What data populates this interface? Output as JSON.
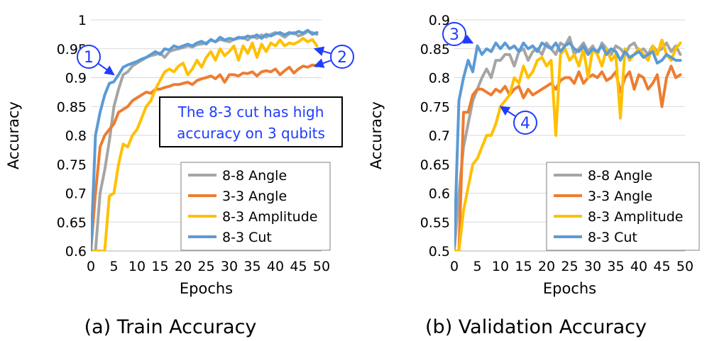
{
  "chart_data": [
    {
      "type": "line",
      "caption": "(a) Train Accuracy",
      "xlabel": "Epochs",
      "ylabel": "Accuracy",
      "xlim": [
        0,
        50
      ],
      "ylim": [
        0.6,
        1
      ],
      "xticks": [
        0,
        5,
        10,
        15,
        20,
        25,
        30,
        35,
        40,
        45,
        50
      ],
      "yticks": [
        0.6,
        0.65,
        0.7,
        0.75,
        0.8,
        0.85,
        0.9,
        0.95,
        1
      ],
      "ytick_labels": [
        "0.6",
        "0.65",
        "0.7",
        "0.75",
        "0.8",
        "0.85",
        "0.9",
        "0.95",
        "1"
      ],
      "grid": "horizontal",
      "legend_position": "bottom-right",
      "series": [
        {
          "name": "8-8 Angle",
          "color": "#a5a5a5",
          "x": [
            0,
            1,
            2,
            3,
            4,
            5,
            6,
            7,
            8,
            9,
            10,
            11,
            12,
            13,
            14,
            15,
            16,
            17,
            18,
            19,
            20,
            21,
            22,
            23,
            24,
            25,
            26,
            27,
            28,
            29,
            30,
            31,
            32,
            33,
            34,
            35,
            36,
            37,
            38,
            39,
            40,
            41,
            42,
            43,
            44,
            45,
            46,
            47,
            48,
            49
          ],
          "y": [
            0.6,
            0.6,
            0.7,
            0.74,
            0.79,
            0.85,
            0.88,
            0.905,
            0.91,
            0.92,
            0.925,
            0.93,
            0.935,
            0.938,
            0.94,
            0.943,
            0.935,
            0.945,
            0.948,
            0.95,
            0.952,
            0.955,
            0.953,
            0.957,
            0.958,
            0.96,
            0.965,
            0.962,
            0.966,
            0.964,
            0.962,
            0.966,
            0.968,
            0.97,
            0.965,
            0.972,
            0.968,
            0.974,
            0.97,
            0.975,
            0.978,
            0.975,
            0.97,
            0.976,
            0.978,
            0.972,
            0.975,
            0.98,
            0.978,
            0.975
          ]
        },
        {
          "name": "3-3 Angle",
          "color": "#ed7d31",
          "x": [
            0,
            1,
            2,
            3,
            4,
            5,
            6,
            7,
            8,
            9,
            10,
            11,
            12,
            13,
            14,
            15,
            16,
            17,
            18,
            19,
            20,
            21,
            22,
            23,
            24,
            25,
            26,
            27,
            28,
            29,
            30,
            31,
            32,
            33,
            34,
            35,
            36,
            37,
            38,
            39,
            40,
            41,
            42,
            43,
            44,
            45,
            46,
            47,
            48,
            49
          ],
          "y": [
            0.6,
            0.7,
            0.78,
            0.8,
            0.81,
            0.82,
            0.84,
            0.845,
            0.85,
            0.86,
            0.865,
            0.87,
            0.875,
            0.873,
            0.88,
            0.88,
            0.883,
            0.885,
            0.888,
            0.888,
            0.89,
            0.892,
            0.888,
            0.895,
            0.898,
            0.9,
            0.903,
            0.898,
            0.905,
            0.892,
            0.905,
            0.905,
            0.903,
            0.908,
            0.907,
            0.91,
            0.903,
            0.91,
            0.912,
            0.91,
            0.915,
            0.905,
            0.912,
            0.918,
            0.908,
            0.915,
            0.92,
            0.918,
            0.922,
            0.92
          ]
        },
        {
          "name": "8-3 Amplitude",
          "color": "#ffc000",
          "x": [
            0,
            1,
            2,
            3,
            4,
            5,
            6,
            7,
            8,
            9,
            10,
            11,
            12,
            13,
            14,
            15,
            16,
            17,
            18,
            19,
            20,
            21,
            22,
            23,
            24,
            25,
            26,
            27,
            28,
            29,
            30,
            31,
            32,
            33,
            34,
            35,
            36,
            37,
            38,
            39,
            40,
            41,
            42,
            43,
            44,
            45,
            46,
            47,
            48,
            49
          ],
          "y": [
            0.6,
            0.6,
            0.6,
            0.6,
            0.695,
            0.7,
            0.75,
            0.785,
            0.78,
            0.8,
            0.81,
            0.83,
            0.85,
            0.86,
            0.88,
            0.895,
            0.91,
            0.915,
            0.91,
            0.92,
            0.925,
            0.905,
            0.915,
            0.93,
            0.918,
            0.935,
            0.945,
            0.93,
            0.95,
            0.938,
            0.945,
            0.955,
            0.93,
            0.955,
            0.942,
            0.96,
            0.935,
            0.958,
            0.945,
            0.96,
            0.955,
            0.965,
            0.955,
            0.96,
            0.958,
            0.962,
            0.968,
            0.962,
            0.966,
            0.955
          ]
        },
        {
          "name": "8-3 Cut",
          "color": "#5b9bd5",
          "x": [
            0,
            1,
            2,
            3,
            4,
            5,
            6,
            7,
            8,
            9,
            10,
            11,
            12,
            13,
            14,
            15,
            16,
            17,
            18,
            19,
            20,
            21,
            22,
            23,
            24,
            25,
            26,
            27,
            28,
            29,
            30,
            31,
            32,
            33,
            34,
            35,
            36,
            37,
            38,
            39,
            40,
            41,
            42,
            43,
            44,
            45,
            46,
            47,
            48,
            49
          ],
          "y": [
            0.6,
            0.8,
            0.84,
            0.87,
            0.89,
            0.893,
            0.905,
            0.918,
            0.922,
            0.925,
            0.928,
            0.932,
            0.935,
            0.94,
            0.945,
            0.94,
            0.95,
            0.948,
            0.955,
            0.952,
            0.955,
            0.958,
            0.955,
            0.96,
            0.963,
            0.958,
            0.966,
            0.962,
            0.97,
            0.965,
            0.968,
            0.966,
            0.97,
            0.968,
            0.972,
            0.97,
            0.974,
            0.968,
            0.975,
            0.972,
            0.976,
            0.978,
            0.974,
            0.978,
            0.976,
            0.98,
            0.977,
            0.982,
            0.975,
            0.978
          ]
        }
      ],
      "annotations": [
        {
          "type": "callout",
          "text": "1",
          "x": 5,
          "y": 0.905
        },
        {
          "type": "callout",
          "text": "2",
          "x": 48.5,
          "y": 0.95
        },
        {
          "type": "callout",
          "text": "2",
          "x": 48.5,
          "y": 0.92
        },
        {
          "type": "box",
          "lines": [
            "The 8-3 cut has high",
            "accuracy on 3 qubits"
          ]
        }
      ]
    },
    {
      "type": "line",
      "caption": "(b) Validation Accuracy",
      "xlabel": "Epochs",
      "ylabel": "Accuracy",
      "xlim": [
        0,
        50
      ],
      "ylim": [
        0.5,
        0.9
      ],
      "xticks": [
        0,
        5,
        10,
        15,
        20,
        25,
        30,
        35,
        40,
        45,
        50
      ],
      "yticks": [
        0.5,
        0.55,
        0.6,
        0.65,
        0.7,
        0.75,
        0.8,
        0.85,
        0.9
      ],
      "ytick_labels": [
        "0.5",
        "0.55",
        "0.6",
        "0.65",
        "0.7",
        "0.75",
        "0.8",
        "0.85",
        "0.9"
      ],
      "grid": "horizontal",
      "legend_position": "bottom-right",
      "series": [
        {
          "name": "8-8 Angle",
          "color": "#a5a5a5",
          "x": [
            0,
            1,
            2,
            3,
            4,
            5,
            6,
            7,
            8,
            9,
            10,
            11,
            12,
            13,
            14,
            15,
            16,
            17,
            18,
            19,
            20,
            21,
            22,
            23,
            24,
            25,
            26,
            27,
            28,
            29,
            30,
            31,
            32,
            33,
            34,
            35,
            36,
            37,
            38,
            39,
            40,
            41,
            42,
            43,
            44,
            45,
            46,
            47,
            48,
            49
          ],
          "y": [
            0.5,
            0.6,
            0.68,
            0.72,
            0.76,
            0.78,
            0.8,
            0.815,
            0.8,
            0.83,
            0.83,
            0.84,
            0.84,
            0.82,
            0.845,
            0.85,
            0.83,
            0.845,
            0.85,
            0.84,
            0.86,
            0.85,
            0.84,
            0.86,
            0.855,
            0.87,
            0.84,
            0.85,
            0.86,
            0.845,
            0.855,
            0.84,
            0.86,
            0.85,
            0.84,
            0.855,
            0.85,
            0.84,
            0.855,
            0.86,
            0.845,
            0.85,
            0.84,
            0.855,
            0.845,
            0.85,
            0.86,
            0.845,
            0.855,
            0.84
          ]
        },
        {
          "name": "3-3 Angle",
          "color": "#ed7d31",
          "x": [
            0,
            1,
            2,
            3,
            4,
            5,
            6,
            7,
            8,
            9,
            10,
            11,
            12,
            13,
            14,
            15,
            16,
            17,
            18,
            19,
            20,
            21,
            22,
            23,
            24,
            25,
            26,
            27,
            28,
            29,
            30,
            31,
            32,
            33,
            34,
            35,
            36,
            37,
            38,
            39,
            40,
            41,
            42,
            43,
            44,
            45,
            46,
            47,
            48,
            49
          ],
          "y": [
            0.5,
            0.5,
            0.74,
            0.74,
            0.77,
            0.78,
            0.78,
            0.775,
            0.77,
            0.78,
            0.775,
            0.785,
            0.77,
            0.78,
            0.785,
            0.765,
            0.78,
            0.77,
            0.775,
            0.78,
            0.785,
            0.79,
            0.78,
            0.795,
            0.8,
            0.8,
            0.79,
            0.81,
            0.79,
            0.8,
            0.805,
            0.8,
            0.81,
            0.795,
            0.8,
            0.81,
            0.775,
            0.8,
            0.81,
            0.78,
            0.805,
            0.8,
            0.78,
            0.79,
            0.805,
            0.75,
            0.8,
            0.82,
            0.8,
            0.805
          ]
        },
        {
          "name": "8-3 Amplitude",
          "color": "#ffc000",
          "x": [
            0,
            1,
            2,
            3,
            4,
            5,
            6,
            7,
            8,
            9,
            10,
            11,
            12,
            13,
            14,
            15,
            16,
            17,
            18,
            19,
            20,
            21,
            22,
            23,
            24,
            25,
            26,
            27,
            28,
            29,
            30,
            31,
            32,
            33,
            34,
            35,
            36,
            37,
            38,
            39,
            40,
            41,
            42,
            43,
            44,
            45,
            46,
            47,
            48,
            49
          ],
          "y": [
            0.5,
            0.5,
            0.57,
            0.61,
            0.65,
            0.66,
            0.68,
            0.7,
            0.7,
            0.72,
            0.75,
            0.76,
            0.77,
            0.8,
            0.79,
            0.82,
            0.8,
            0.81,
            0.83,
            0.835,
            0.82,
            0.83,
            0.7,
            0.84,
            0.85,
            0.83,
            0.84,
            0.82,
            0.85,
            0.8,
            0.85,
            0.84,
            0.82,
            0.85,
            0.83,
            0.84,
            0.73,
            0.85,
            0.83,
            0.84,
            0.85,
            0.84,
            0.83,
            0.855,
            0.84,
            0.865,
            0.84,
            0.83,
            0.85,
            0.86
          ]
        },
        {
          "name": "8-3 Cut",
          "color": "#5b9bd5",
          "x": [
            0,
            1,
            2,
            3,
            4,
            5,
            6,
            7,
            8,
            9,
            10,
            11,
            12,
            13,
            14,
            15,
            16,
            17,
            18,
            19,
            20,
            21,
            22,
            23,
            24,
            25,
            26,
            27,
            28,
            29,
            30,
            31,
            32,
            33,
            34,
            35,
            36,
            37,
            38,
            39,
            40,
            41,
            42,
            43,
            44,
            45,
            46,
            47,
            48,
            49
          ],
          "y": [
            0.51,
            0.76,
            0.8,
            0.83,
            0.81,
            0.855,
            0.84,
            0.85,
            0.845,
            0.86,
            0.85,
            0.86,
            0.85,
            0.855,
            0.845,
            0.86,
            0.85,
            0.855,
            0.845,
            0.86,
            0.855,
            0.85,
            0.86,
            0.845,
            0.855,
            0.86,
            0.85,
            0.845,
            0.855,
            0.84,
            0.85,
            0.845,
            0.855,
            0.84,
            0.85,
            0.845,
            0.83,
            0.845,
            0.835,
            0.84,
            0.845,
            0.835,
            0.84,
            0.845,
            0.825,
            0.83,
            0.84,
            0.835,
            0.83,
            0.83
          ]
        }
      ],
      "annotations": [
        {
          "type": "callout",
          "text": "3",
          "x": 4,
          "y": 0.86
        },
        {
          "type": "callout",
          "text": "4",
          "x": 10,
          "y": 0.75
        }
      ]
    }
  ]
}
